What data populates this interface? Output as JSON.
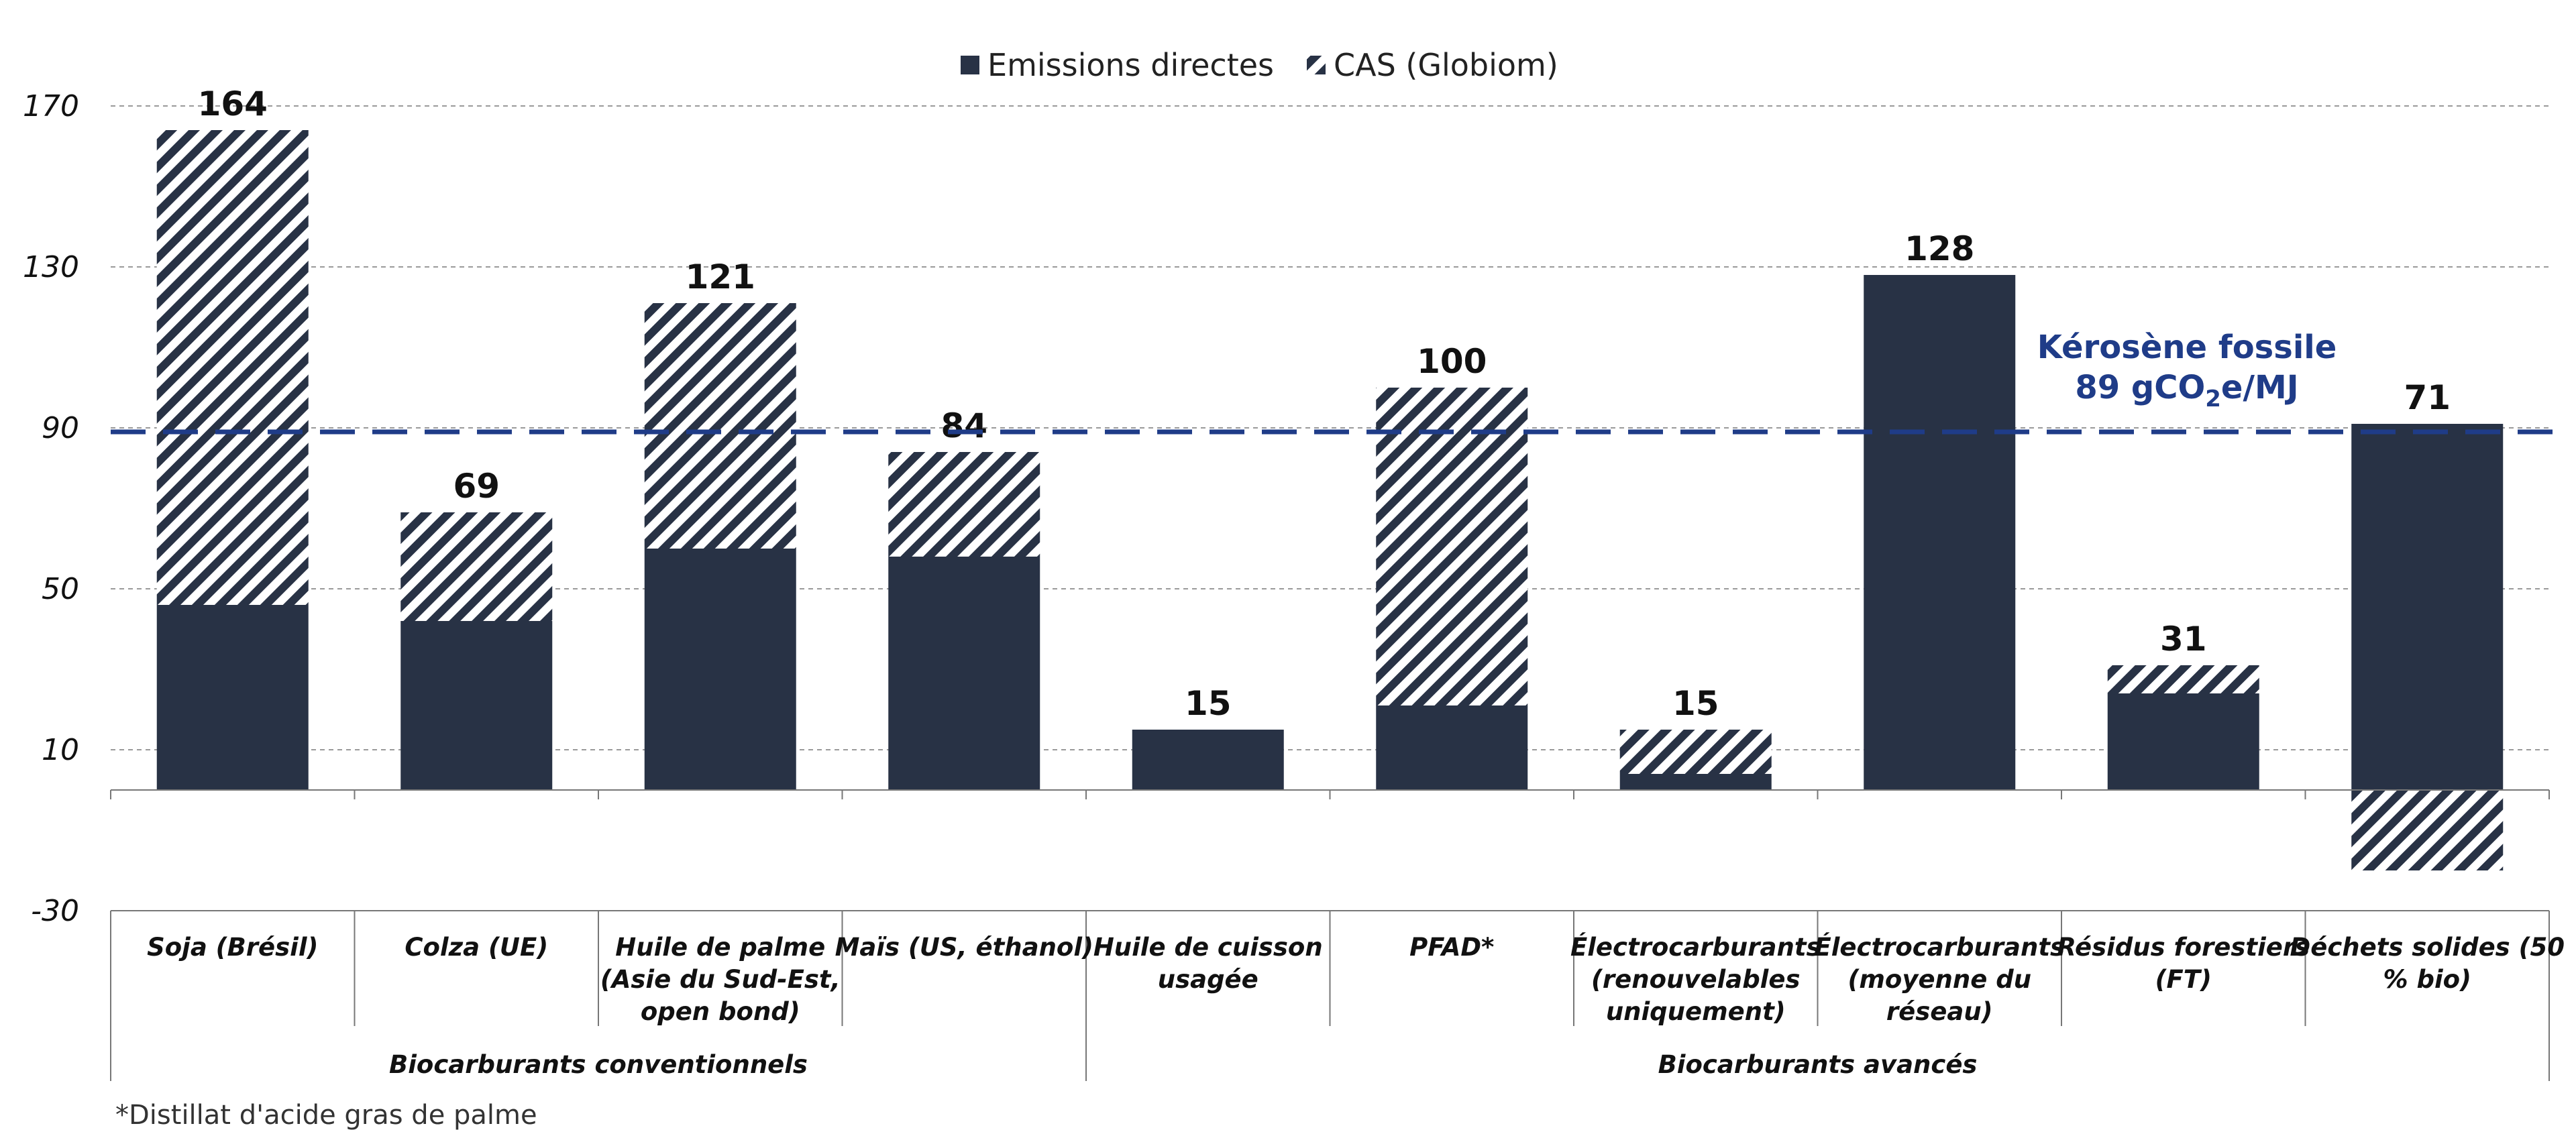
{
  "chart_data": {
    "type": "bar",
    "stacked": true,
    "title": "",
    "xlabel": "",
    "ylabel": "",
    "ylim": [
      -30,
      170
    ],
    "yticks": [
      -30,
      10,
      50,
      90,
      130,
      170
    ],
    "grid": true,
    "legend_position": "top-center",
    "categories": [
      "Soja (Brésil)",
      "Colza (UE)",
      "Huile de palme (Asie du Sud-Est, open bond)",
      "Maïs (US, éthanol)",
      "Huile de cuisson usagée",
      "PFAD*",
      "Électrocarburants (renouvelables uniquement)",
      "Électrocarburants (moyenne du réseau)",
      "Résidus forestiers (FT)",
      "Déchets solides (50 % bio)"
    ],
    "category_lines": [
      [
        "Soja (Brésil)"
      ],
      [
        "Colza (UE)"
      ],
      [
        "Huile de palme",
        "(Asie du Sud-Est,",
        "open bond)"
      ],
      [
        "Maïs (US, éthanol)"
      ],
      [
        "Huile de cuisson",
        "usagée"
      ],
      [
        "PFAD*"
      ],
      [
        "Électrocarburants",
        "(renouvelables",
        "uniquement)"
      ],
      [
        "Électrocarburants",
        "(moyenne du",
        "réseau)"
      ],
      [
        "Résidus forestiers",
        "(FT)"
      ],
      [
        "Déchets solides (50",
        "% bio)"
      ]
    ],
    "series": [
      {
        "name": "Emissions directes",
        "values": [
          46,
          42,
          60,
          58,
          15,
          21,
          4,
          128,
          24,
          91
        ],
        "color": "#283245"
      },
      {
        "name": "CAS (Globiom)",
        "values": [
          118,
          27,
          61,
          26,
          0,
          79,
          11,
          0,
          7,
          -20
        ],
        "color": "#283245",
        "pattern": "hatched"
      }
    ],
    "totals": [
      "164",
      "69",
      "121",
      "84",
      "15",
      "100",
      "15",
      "128",
      "31",
      "71"
    ],
    "groups": [
      {
        "label": "Biocarburants conventionnels",
        "from": 0,
        "to": 4
      },
      {
        "label": "Biocarburants avancés",
        "from": 4,
        "to": 10
      }
    ],
    "reference_line": {
      "value": 89,
      "label_line1": "Kérosène fossile",
      "label_line2_pre": "89 gCO",
      "label_line2_sub": "2",
      "label_line2_post": "e/MJ",
      "color": "#1f3c88"
    },
    "footnote": "*Distillat d'acide gras de palme"
  }
}
